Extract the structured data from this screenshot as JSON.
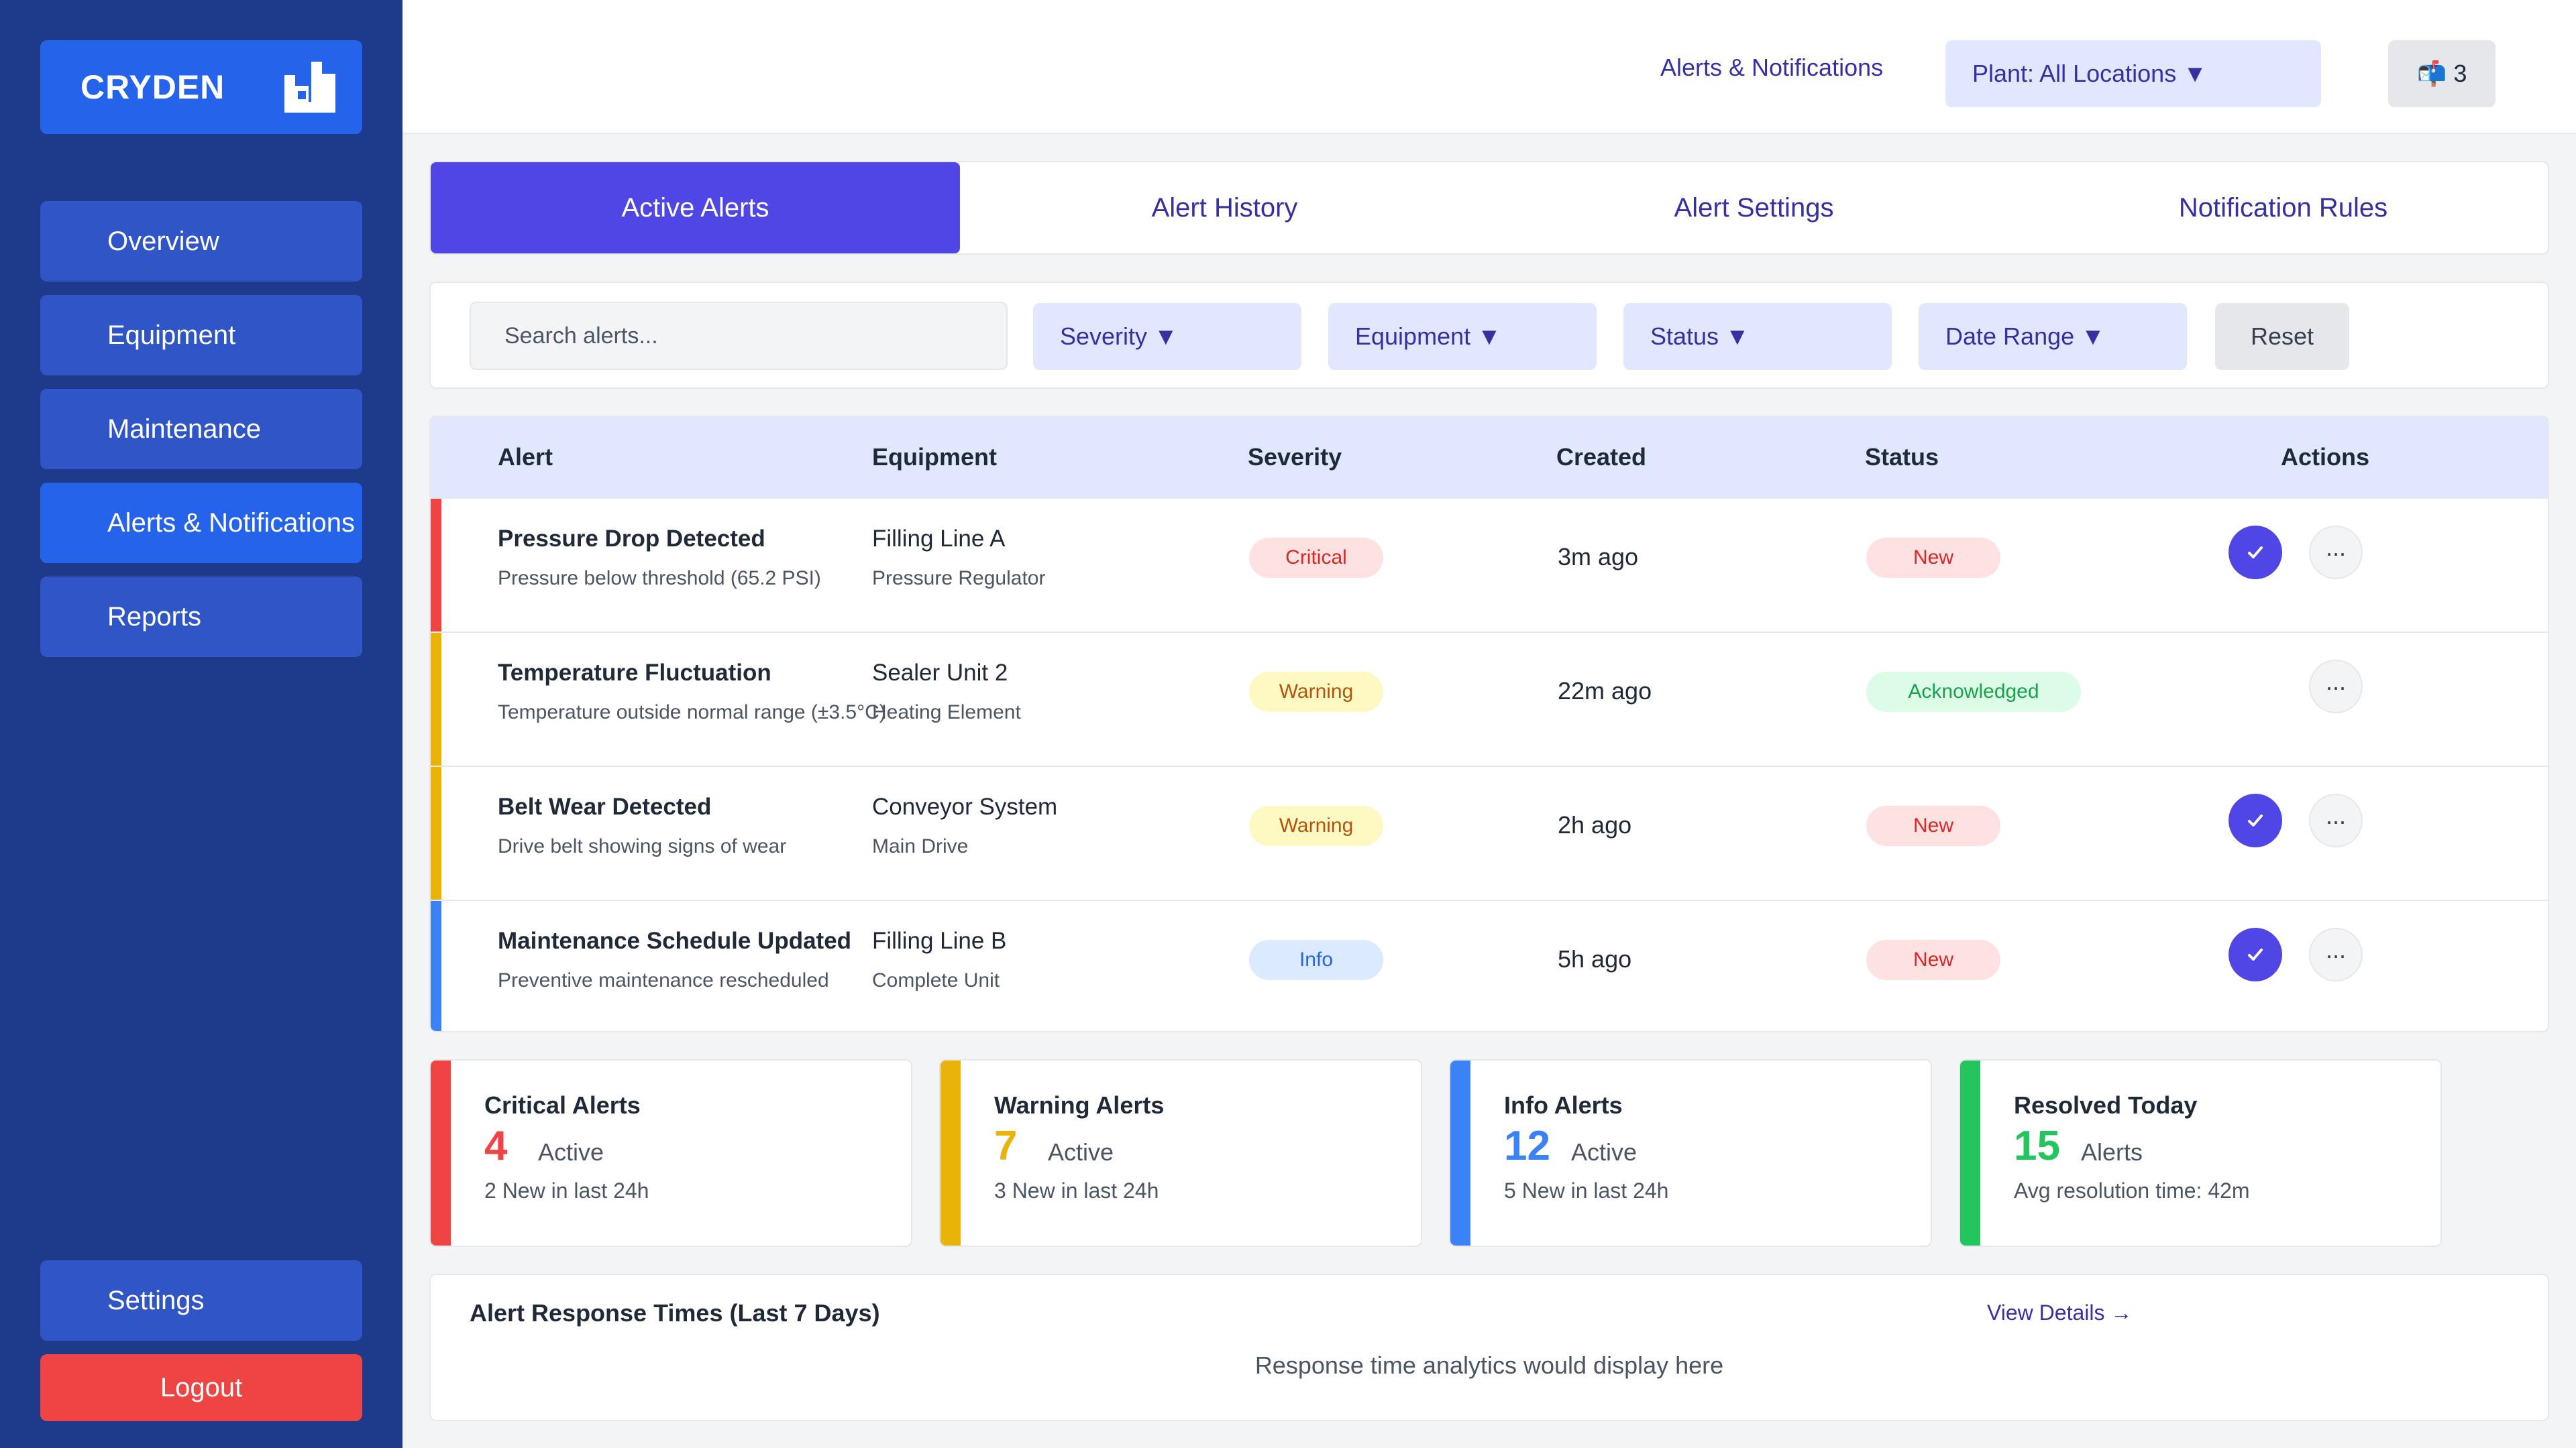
{
  "brand": {
    "name": "CRYDEN"
  },
  "sidebar": {
    "items": [
      {
        "label": "Overview"
      },
      {
        "label": "Equipment"
      },
      {
        "label": "Maintenance"
      },
      {
        "label": "Alerts & Notifications"
      },
      {
        "label": "Reports"
      }
    ],
    "settings_label": "Settings",
    "logout_label": "Logout"
  },
  "topbar": {
    "link_label": "Alerts & Notifications",
    "plant_label": "Plant: All Locations ▼",
    "notif_icon": "📬",
    "notif_count": "3"
  },
  "tabs": [
    {
      "label": "Active Alerts"
    },
    {
      "label": "Alert History"
    },
    {
      "label": "Alert Settings"
    },
    {
      "label": "Notification Rules"
    }
  ],
  "filters": {
    "search_placeholder": "Search alerts...",
    "severity": "Severity ▼",
    "equipment": "Equipment ▼",
    "status": "Status ▼",
    "date_range": "Date Range ▼",
    "reset": "Reset"
  },
  "table": {
    "headers": {
      "alert": "Alert",
      "equipment": "Equipment",
      "severity": "Severity",
      "created": "Created",
      "status": "Status",
      "actions": "Actions"
    },
    "rows": [
      {
        "title": "Pressure Drop Detected",
        "description": "Pressure below threshold (65.2 PSI)",
        "equipment": "Filling Line A",
        "component": "Pressure Regulator",
        "severity": "Critical",
        "created": "3m ago",
        "status": "New",
        "ack_icon": "✓",
        "more_icon": "..."
      },
      {
        "title": "Temperature Fluctuation",
        "description": "Temperature outside normal range (±3.5°C)",
        "equipment": "Sealer Unit 2",
        "component": "Heating Element",
        "severity": "Warning",
        "created": "22m ago",
        "status": "Acknowledged",
        "more_icon": "..."
      },
      {
        "title": "Belt Wear Detected",
        "description": "Drive belt showing signs of wear",
        "equipment": "Conveyor System",
        "component": "Main Drive",
        "severity": "Warning",
        "created": "2h ago",
        "status": "New",
        "ack_icon": "✓",
        "more_icon": "..."
      },
      {
        "title": "Maintenance Schedule Updated",
        "description": "Preventive maintenance rescheduled",
        "equipment": "Filling Line B",
        "component": "Complete Unit",
        "severity": "Info",
        "created": "5h ago",
        "status": "New",
        "ack_icon": "✓",
        "more_icon": "..."
      }
    ]
  },
  "stats": [
    {
      "title": "Critical Alerts",
      "value": "4",
      "unit": "Active",
      "footer": "2 New in last 24h",
      "color": "#ef4444"
    },
    {
      "title": "Warning Alerts",
      "value": "7",
      "unit": "Active",
      "footer": "3 New in last 24h",
      "color": "#eab308"
    },
    {
      "title": "Info Alerts",
      "value": "12",
      "unit": "Active",
      "footer": "5 New in last 24h",
      "color": "#3b82f6"
    },
    {
      "title": "Resolved Today",
      "value": "15",
      "unit": "Alerts",
      "footer": "Avg resolution time: 42m",
      "color": "#22c55e"
    }
  ],
  "response": {
    "title": "Alert Response Times (Last 7 Days)",
    "link": "View Details →",
    "placeholder": "Response time analytics would display here"
  },
  "colors": {
    "critical": "#ef4444",
    "warning": "#eab308",
    "info": "#3b82f6",
    "primary": "#4f46e5"
  }
}
